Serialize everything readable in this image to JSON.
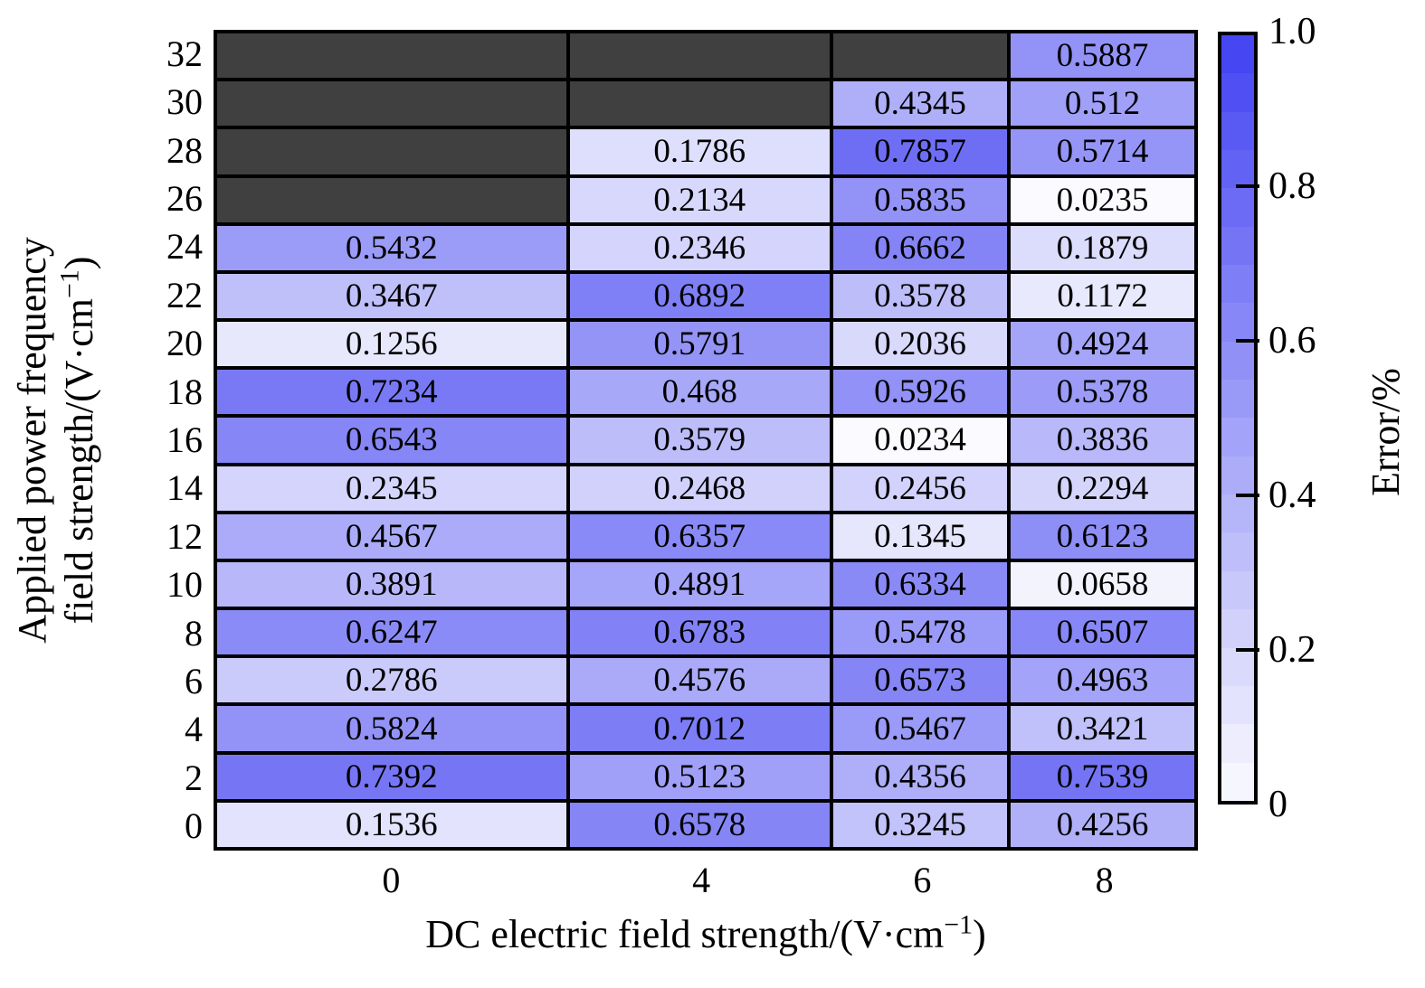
{
  "chart_data": {
    "type": "heatmap",
    "xlabel": "DC electric field strength/(V·cm⁻¹)",
    "ylabel": "Applied power frequency field strength/(V·cm⁻¹)",
    "xlabel_parts": {
      "pre": "DC electric field strength/(V·cm",
      "sup": "−1",
      "post": ")"
    },
    "ylabel_parts": {
      "line1": "Applied power frequency",
      "line2_pre": "field strength/(V·cm",
      "line2_sup": "−1",
      "line2_post": ")"
    },
    "colorbar": {
      "label": "Error/%",
      "range": [
        0,
        1
      ],
      "steps": 20,
      "ticks": [
        {
          "label": "1.0",
          "value": 1.0,
          "mark": false
        },
        {
          "label": "0.8",
          "value": 0.8,
          "mark": true
        },
        {
          "label": "0.6",
          "value": 0.6,
          "mark": true
        },
        {
          "label": "0.4",
          "value": 0.4,
          "mark": true
        },
        {
          "label": "0.2",
          "value": 0.2,
          "mark": true
        },
        {
          "label": "0",
          "value": 0.0,
          "mark": false
        }
      ]
    },
    "colors": {
      "min": "#ffffff",
      "max": "#4646f2",
      "missing": "#404040",
      "cell_border": "#000000"
    },
    "x_categories": [
      "0",
      "4",
      "6",
      "8"
    ],
    "y_categories": [
      "32",
      "30",
      "28",
      "26",
      "24",
      "22",
      "20",
      "18",
      "16",
      "14",
      "12",
      "10",
      "8",
      "6",
      "4",
      "2",
      "0"
    ],
    "rows": [
      {
        "y": "32",
        "values": [
          null,
          null,
          null,
          "0.5887"
        ]
      },
      {
        "y": "30",
        "values": [
          null,
          null,
          "0.4345",
          "0.512"
        ]
      },
      {
        "y": "28",
        "values": [
          null,
          "0.1786",
          "0.7857",
          "0.5714"
        ]
      },
      {
        "y": "26",
        "values": [
          null,
          "0.2134",
          "0.5835",
          "0.0235"
        ]
      },
      {
        "y": "24",
        "values": [
          "0.5432",
          "0.2346",
          "0.6662",
          "0.1879"
        ]
      },
      {
        "y": "22",
        "values": [
          "0.3467",
          "0.6892",
          "0.3578",
          "0.1172"
        ]
      },
      {
        "y": "20",
        "values": [
          "0.1256",
          "0.5791",
          "0.2036",
          "0.4924"
        ]
      },
      {
        "y": "18",
        "values": [
          "0.7234",
          "0.468",
          "0.5926",
          "0.5378"
        ]
      },
      {
        "y": "16",
        "values": [
          "0.6543",
          "0.3579",
          "0.0234",
          "0.3836"
        ]
      },
      {
        "y": "14",
        "values": [
          "0.2345",
          "0.2468",
          "0.2456",
          "0.2294"
        ]
      },
      {
        "y": "12",
        "values": [
          "0.4567",
          "0.6357",
          "0.1345",
          "0.6123"
        ]
      },
      {
        "y": "10",
        "values": [
          "0.3891",
          "0.4891",
          "0.6334",
          "0.0658"
        ]
      },
      {
        "y": "8",
        "values": [
          "0.6247",
          "0.6783",
          "0.5478",
          "0.6507"
        ]
      },
      {
        "y": "6",
        "values": [
          "0.2786",
          "0.4576",
          "0.6573",
          "0.4963"
        ]
      },
      {
        "y": "4",
        "values": [
          "0.5824",
          "0.7012",
          "0.5467",
          "0.3421"
        ]
      },
      {
        "y": "2",
        "values": [
          "0.7392",
          "0.5123",
          "0.4356",
          "0.7539"
        ]
      },
      {
        "y": "0",
        "values": [
          "0.1536",
          "0.6578",
          "0.3245",
          "0.4256"
        ]
      }
    ],
    "legend_position": "right-colorbar",
    "grid": "cell-borders"
  }
}
